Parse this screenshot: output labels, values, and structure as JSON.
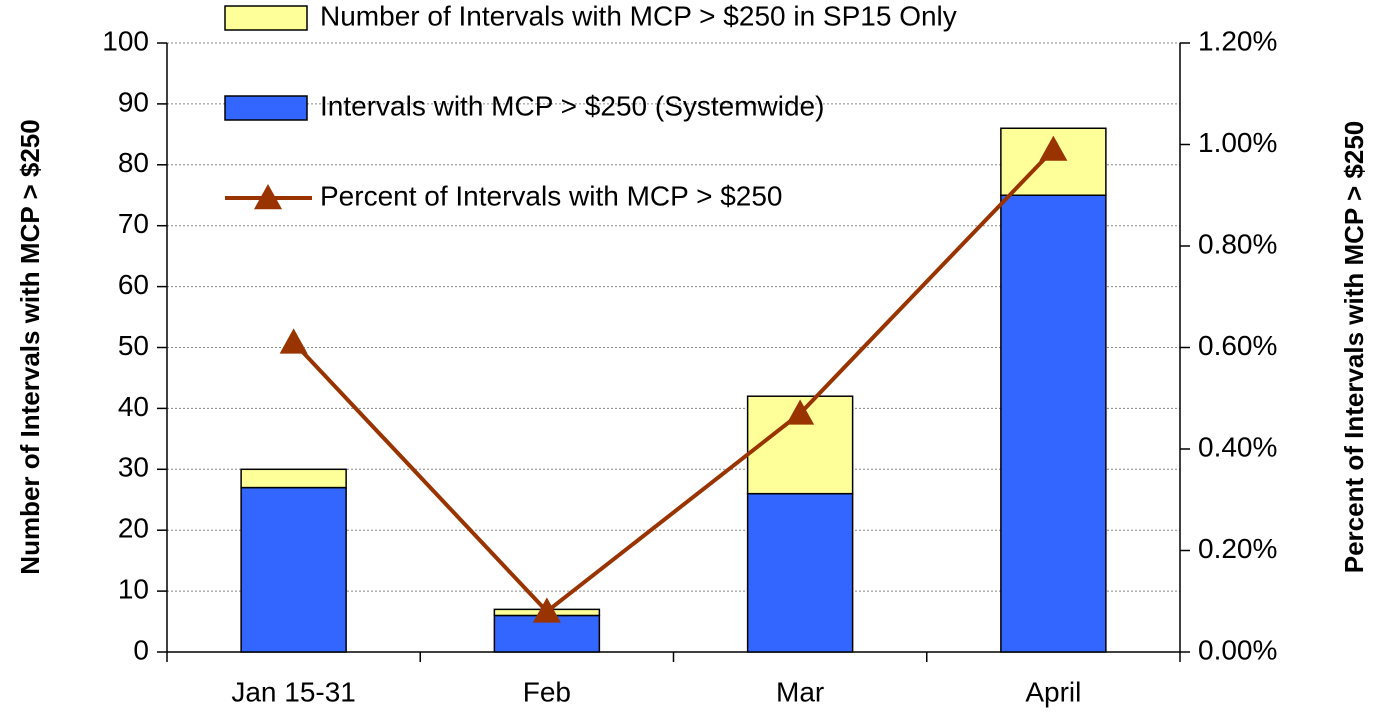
{
  "chart_data": {
    "type": "bar",
    "categories": [
      "Jan 15-31",
      "Feb",
      "Mar",
      "April"
    ],
    "series": [
      {
        "name": "Intervals with MCP > $250 (Systemwide)",
        "color": "#3366ff",
        "values": [
          27,
          6,
          26,
          75
        ]
      },
      {
        "name": "Number of Intervals with MCP > $250 in SP15 Only",
        "color": "#ffff99",
        "values": [
          3,
          1,
          16,
          11
        ]
      },
      {
        "name": "Percent of Intervals with MCP > $250",
        "color": "#993300",
        "type": "line",
        "axis": "y2",
        "values": [
          0.61,
          0.08,
          0.47,
          0.99
        ]
      }
    ],
    "ylabel": "Number of Intervals with MCP > $250",
    "y2label": "Percent of Intervals with MCP > $250",
    "ylim": [
      0,
      100
    ],
    "yticks": [
      0,
      10,
      20,
      30,
      40,
      50,
      60,
      70,
      80,
      90,
      100
    ],
    "y2lim": [
      0,
      1.2
    ],
    "y2ticks": [
      {
        "value": 0,
        "label": "0.00%"
      },
      {
        "value": 0.2,
        "label": "0.20%"
      },
      {
        "value": 0.4,
        "label": "0.40%"
      },
      {
        "value": 0.6,
        "label": "0.60%"
      },
      {
        "value": 0.8,
        "label": "0.80%"
      },
      {
        "value": 1.0,
        "label": "1.00%"
      },
      {
        "value": 1.2,
        "label": "1.20%"
      }
    ],
    "grid": true,
    "stacked": true
  }
}
